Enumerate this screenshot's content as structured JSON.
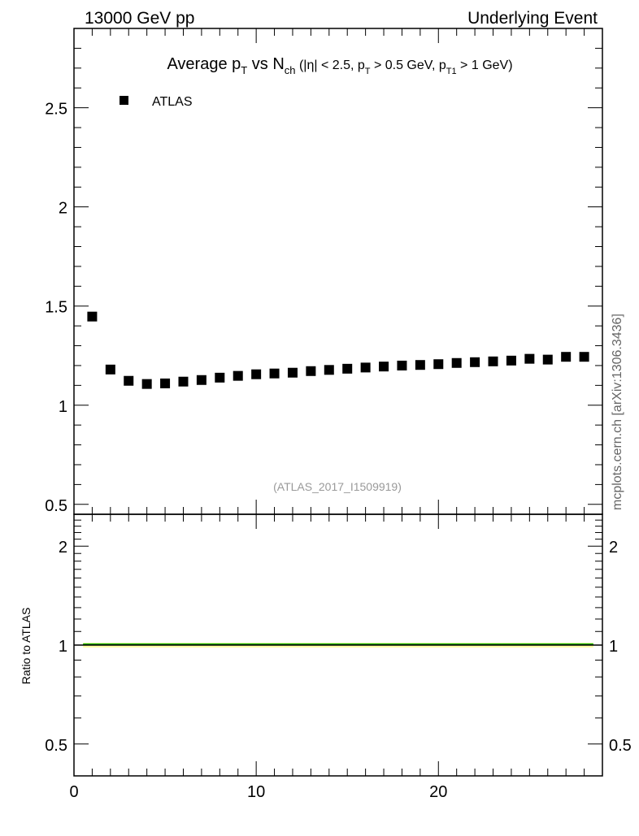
{
  "header": {
    "left": "13000 GeV pp",
    "right": "Underlying Event"
  },
  "side_label": "mcplots.cern.ch [arXiv:1306.3436]",
  "chart_data": {
    "type": "scatter",
    "title": "Average pT vs Nch (|η| < 2.5, pT > 0.5 GeV, pT1 > 1 GeV)",
    "title_parts": {
      "a": "Average p",
      "b": "T",
      "c": " vs N",
      "d": "ch",
      "e": " (|η| < 2.5, p",
      "f": "T",
      "g": " > 0.5 GeV, p",
      "h": "T1",
      "i": " > 1 GeV)"
    },
    "annotation": "(ATLAS_2017_I1509919)",
    "xlim": [
      0,
      29
    ],
    "ylim": [
      0.45,
      2.9
    ],
    "x_ticks": [
      "0",
      "10",
      "20"
    ],
    "y_ticks": [
      "0.5",
      "1",
      "1.5",
      "2",
      "2.5"
    ],
    "legend": {
      "placement": "top-left",
      "entries": [
        "ATLAS"
      ]
    },
    "series": [
      {
        "name": "ATLAS",
        "x": [
          1,
          2,
          3,
          4,
          5,
          6,
          7,
          8,
          9,
          10,
          11,
          12,
          13,
          14,
          15,
          16,
          17,
          18,
          19,
          20,
          21,
          22,
          23,
          24,
          25,
          26,
          27,
          28
        ],
        "y": [
          1.447,
          1.18,
          1.123,
          1.107,
          1.11,
          1.119,
          1.127,
          1.139,
          1.148,
          1.156,
          1.16,
          1.164,
          1.172,
          1.178,
          1.184,
          1.19,
          1.195,
          1.2,
          1.203,
          1.207,
          1.213,
          1.217,
          1.221,
          1.225,
          1.234,
          1.23,
          1.244,
          1.244
        ]
      }
    ],
    "ratio": {
      "ylabel": "Ratio to ATLAS",
      "ylim": [
        0.4,
        2.5
      ],
      "scale": "log",
      "y_ticks": [
        "0.5",
        "1",
        "2"
      ],
      "band_color": "#ffff66",
      "line_color": "#00aa00",
      "values": [
        1,
        1,
        1,
        1,
        1,
        1,
        1,
        1,
        1,
        1,
        1,
        1,
        1,
        1,
        1,
        1,
        1,
        1,
        1,
        1,
        1,
        1,
        1,
        1,
        1,
        1,
        1,
        1
      ]
    }
  }
}
